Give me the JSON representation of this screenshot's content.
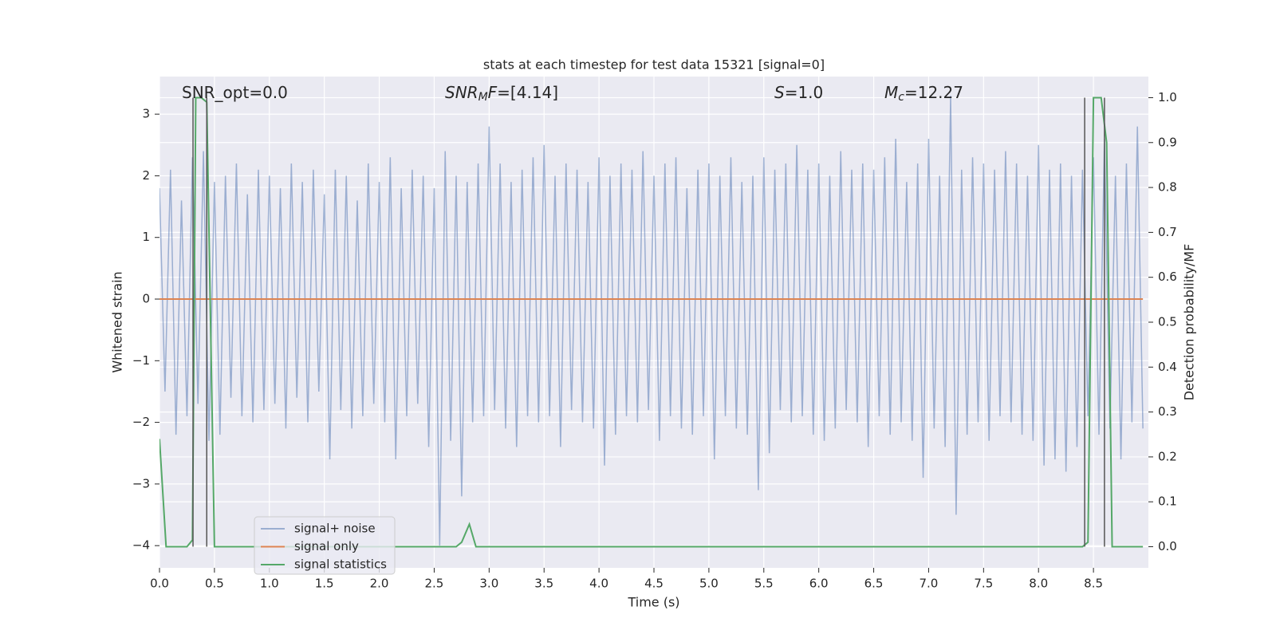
{
  "chart_data": {
    "type": "line",
    "title": "stats at each timestep for test data 15321 [signal=0]",
    "x_label": "Time (s)",
    "y_label": "Whitened strain",
    "y2_label": "Detection probability/MF",
    "xlim": [
      0,
      9.0
    ],
    "ylim": [
      -4.36,
      3.61
    ],
    "y2lim": [
      -0.047,
      1.047
    ],
    "grid": true,
    "xticks": [
      {
        "value": 0,
        "label": "0.0"
      },
      0.5,
      {
        "value": 1,
        "label": "1.0"
      },
      1.5,
      {
        "value": 2,
        "label": "2.0"
      },
      2.5,
      {
        "value": 3,
        "label": "3.0"
      },
      3.5,
      {
        "value": 4,
        "label": "4.0"
      },
      4.5,
      {
        "value": 5,
        "label": "5.0"
      },
      5.5,
      {
        "value": 6,
        "label": "6.0"
      },
      6.5,
      {
        "value": 7,
        "label": "7.0"
      },
      7.5,
      {
        "value": 8,
        "label": "8.0"
      },
      8.5
    ],
    "yticks": [
      {
        "value": -4,
        "label": "−4"
      },
      {
        "value": -3,
        "label": "−3"
      },
      {
        "value": -2,
        "label": "−2"
      },
      {
        "value": -1,
        "label": "−1"
      },
      0,
      1,
      2,
      3
    ],
    "y2ticks": [
      {
        "value": 0,
        "label": "0.0"
      },
      0.1,
      0.2,
      0.3,
      0.4,
      0.5,
      0.6,
      0.7,
      0.8,
      0.9,
      {
        "value": 1,
        "label": "1.0"
      }
    ],
    "annotations": [
      {
        "parts": [
          {
            "text": "SNR_opt=0.0"
          }
        ]
      },
      {
        "parts": [
          {
            "text": "SNR",
            "style": "italic"
          },
          {
            "text": "M",
            "style": "sub"
          },
          {
            "text": "F",
            "style": "italic"
          },
          {
            "text": "=[4.14]"
          }
        ]
      },
      {
        "parts": [
          {
            "text": "S",
            "style": "italic"
          },
          {
            "text": "=1.0"
          }
        ]
      },
      {
        "parts": [
          {
            "text": "M",
            "style": "italic"
          },
          {
            "text": "c",
            "style": "sub"
          },
          {
            "text": "=12.27"
          }
        ]
      }
    ],
    "vlines": {
      "x": [
        0.305,
        0.43,
        8.42,
        8.6
      ],
      "ymin": 0,
      "ymax": 1,
      "color": "#555555"
    },
    "series": [
      {
        "name": "signal+ noise",
        "color": "#4c72b0",
        "x": [
          0,
          0.05,
          0.1,
          0.15,
          0.2,
          0.25,
          0.3,
          0.35,
          0.4,
          0.45,
          0.5,
          0.55,
          0.6,
          0.65,
          0.7,
          0.75,
          0.8,
          0.85,
          0.9,
          0.95,
          1,
          1.05,
          1.1,
          1.15,
          1.2,
          1.25,
          1.3,
          1.35,
          1.4,
          1.45,
          1.5,
          1.55,
          1.6,
          1.65,
          1.7,
          1.75,
          1.8,
          1.85,
          1.9,
          1.95,
          2,
          2.05,
          2.1,
          2.15,
          2.2,
          2.25,
          2.3,
          2.35,
          2.4,
          2.45,
          2.5,
          2.55,
          2.6,
          2.65,
          2.7,
          2.75,
          2.8,
          2.85,
          2.9,
          2.95,
          3,
          3.05,
          3.1,
          3.15,
          3.2,
          3.25,
          3.3,
          3.35,
          3.4,
          3.45,
          3.5,
          3.55,
          3.6,
          3.65,
          3.7,
          3.75,
          3.8,
          3.85,
          3.9,
          3.95,
          4,
          4.05,
          4.1,
          4.15,
          4.2,
          4.25,
          4.3,
          4.35,
          4.4,
          4.45,
          4.5,
          4.55,
          4.6,
          4.65,
          4.7,
          4.75,
          4.8,
          4.85,
          4.9,
          4.95,
          5,
          5.05,
          5.1,
          5.15,
          5.2,
          5.25,
          5.3,
          5.35,
          5.4,
          5.45,
          5.5,
          5.55,
          5.6,
          5.65,
          5.7,
          5.75,
          5.8,
          5.85,
          5.9,
          5.95,
          6,
          6.05,
          6.1,
          6.15,
          6.2,
          6.25,
          6.3,
          6.35,
          6.4,
          6.45,
          6.5,
          6.55,
          6.6,
          6.65,
          6.7,
          6.75,
          6.8,
          6.85,
          6.9,
          6.95,
          7,
          7.05,
          7.1,
          7.15,
          7.2,
          7.25,
          7.3,
          7.35,
          7.4,
          7.45,
          7.5,
          7.55,
          7.6,
          7.65,
          7.7,
          7.75,
          7.8,
          7.85,
          7.9,
          7.95,
          8,
          8.05,
          8.1,
          8.15,
          8.2,
          8.25,
          8.3,
          8.35,
          8.4,
          8.45,
          8.5,
          8.55,
          8.6,
          8.65,
          8.7,
          8.75,
          8.8,
          8.85,
          8.9,
          8.95
        ],
        "values": [
          1.8,
          -1.5,
          2.1,
          -2.2,
          1.6,
          -1.9,
          2.3,
          -1.7,
          2.4,
          -2.3,
          1.9,
          -2.2,
          2.0,
          -1.6,
          2.2,
          -1.9,
          1.7,
          -2.0,
          2.1,
          -1.8,
          2.0,
          -1.7,
          1.8,
          -2.1,
          2.2,
          -1.6,
          1.9,
          -2.0,
          2.1,
          -1.5,
          1.7,
          -2.6,
          2.1,
          -1.8,
          2.0,
          -2.1,
          1.6,
          -1.9,
          2.2,
          -1.7,
          1.9,
          -2.0,
          2.3,
          -2.6,
          1.8,
          -1.9,
          2.1,
          -1.7,
          2.0,
          -2.4,
          1.8,
          -4.0,
          2.4,
          -2.3,
          2.0,
          -3.2,
          1.9,
          -2.0,
          2.2,
          -1.9,
          2.8,
          -1.8,
          2.2,
          -2.1,
          1.9,
          -2.4,
          2.1,
          -1.9,
          2.3,
          -2.0,
          2.5,
          -1.9,
          2.0,
          -2.4,
          2.2,
          -1.8,
          2.1,
          -2.0,
          1.9,
          -2.1,
          2.3,
          -2.7,
          2.0,
          -2.2,
          2.2,
          -1.9,
          2.1,
          -2.0,
          2.4,
          -1.8,
          2.0,
          -2.3,
          2.2,
          -1.9,
          2.3,
          -2.1,
          1.8,
          -2.2,
          2.1,
          -1.9,
          2.2,
          -2.6,
          2.0,
          -1.9,
          2.3,
          -2.1,
          1.9,
          -2.2,
          2.0,
          -3.1,
          2.3,
          -2.5,
          2.1,
          -1.8,
          2.2,
          -2.0,
          2.5,
          -1.9,
          2.1,
          -2.2,
          2.2,
          -2.3,
          2.0,
          -2.1,
          2.4,
          -1.8,
          2.1,
          -2.0,
          2.2,
          -2.4,
          2.1,
          -1.9,
          2.3,
          -2.2,
          2.6,
          -2.0,
          1.9,
          -2.3,
          2.2,
          -2.9,
          2.6,
          -2.1,
          2.0,
          -2.4,
          3.3,
          -3.5,
          2.1,
          -2.2,
          2.3,
          -2.0,
          2.2,
          -2.3,
          2.1,
          -1.9,
          2.4,
          -2.0,
          2.2,
          -2.2,
          2.0,
          -2.3,
          2.5,
          -2.7,
          2.1,
          -2.6,
          2.2,
          -2.8,
          2.0,
          -2.4,
          2.1,
          -1.9,
          2.3,
          -2.2,
          2.6,
          -2.1,
          2.0,
          -2.6,
          2.2,
          -2.0,
          2.8,
          -2.1
        ]
      },
      {
        "name": "signal only",
        "color": "#dd8452",
        "x": [
          0,
          8.95
        ],
        "values": [
          0,
          0
        ]
      },
      {
        "name": "signal statistics",
        "color": "#55a868",
        "axis": "y2",
        "x": [
          0,
          0.06,
          0.25,
          0.3,
          0.33,
          0.38,
          0.43,
          0.5,
          2.7,
          2.75,
          2.82,
          2.88,
          8.4,
          8.45,
          8.5,
          8.57,
          8.62,
          8.67,
          8.95
        ],
        "values": [
          0.24,
          0.0,
          0.0,
          0.015,
          1.0,
          1.0,
          0.99,
          0.0,
          0.0,
          0.01,
          0.05,
          0.0,
          0.0,
          0.01,
          1.0,
          1.0,
          0.9,
          0.0,
          0.0
        ]
      }
    ]
  }
}
